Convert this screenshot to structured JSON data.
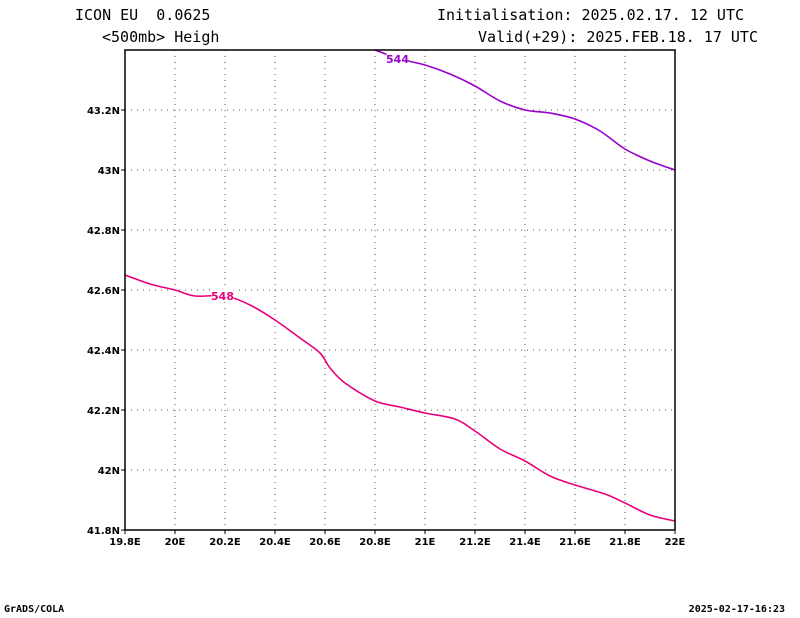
{
  "header": {
    "model_line": "ICON EU  0.0625",
    "field_line": "<500mb> Heigh",
    "init_line": "Initialisation: 2025.02.17. 12 UTC",
    "valid_line": "Valid(+29): 2025.FEB.18. 17 UTC"
  },
  "footer": {
    "left": "GrADS/COLA",
    "right": "2025-02-17-16:23"
  },
  "chart_data": {
    "type": "line",
    "grid": true,
    "xlim": [
      19.8,
      22.0
    ],
    "ylim": [
      41.8,
      43.4
    ],
    "x_ticks": [
      {
        "v": 19.8,
        "label": "19.8E"
      },
      {
        "v": 20.0,
        "label": "20E"
      },
      {
        "v": 20.2,
        "label": "20.2E"
      },
      {
        "v": 20.4,
        "label": "20.4E"
      },
      {
        "v": 20.6,
        "label": "20.6E"
      },
      {
        "v": 20.8,
        "label": "20.8E"
      },
      {
        "v": 21.0,
        "label": "21E"
      },
      {
        "v": 21.2,
        "label": "21.2E"
      },
      {
        "v": 21.4,
        "label": "21.4E"
      },
      {
        "v": 21.6,
        "label": "21.6E"
      },
      {
        "v": 21.8,
        "label": "21.8E"
      },
      {
        "v": 22.0,
        "label": "22E"
      }
    ],
    "y_ticks": [
      {
        "v": 41.8,
        "label": "41.8N"
      },
      {
        "v": 42.0,
        "label": "42N"
      },
      {
        "v": 42.2,
        "label": "42.2N"
      },
      {
        "v": 42.4,
        "label": "42.4N"
      },
      {
        "v": 42.6,
        "label": "42.6N"
      },
      {
        "v": 42.8,
        "label": "42.8N"
      },
      {
        "v": 43.0,
        "label": "43N"
      },
      {
        "v": 43.2,
        "label": "43.2N"
      }
    ],
    "contours": [
      {
        "label": "544",
        "color": "#9a00cc",
        "label_at": [
          20.89,
          43.37
        ],
        "points": [
          [
            20.8,
            43.4
          ],
          [
            20.9,
            43.37
          ],
          [
            21.0,
            43.35
          ],
          [
            21.1,
            43.32
          ],
          [
            21.2,
            43.28
          ],
          [
            21.3,
            43.23
          ],
          [
            21.4,
            43.2
          ],
          [
            21.5,
            43.19
          ],
          [
            21.6,
            43.17
          ],
          [
            21.7,
            43.13
          ],
          [
            21.8,
            43.07
          ],
          [
            21.9,
            43.03
          ],
          [
            22.0,
            43.0
          ]
        ]
      },
      {
        "label": "548",
        "color": "#e8007a",
        "label_at": [
          20.19,
          42.58
        ],
        "points": [
          [
            19.8,
            42.65
          ],
          [
            19.9,
            42.62
          ],
          [
            20.0,
            42.6
          ],
          [
            20.08,
            42.58
          ],
          [
            20.2,
            42.58
          ],
          [
            20.3,
            42.55
          ],
          [
            20.4,
            42.5
          ],
          [
            20.5,
            42.44
          ],
          [
            20.58,
            42.39
          ],
          [
            20.62,
            42.34
          ],
          [
            20.68,
            42.29
          ],
          [
            20.8,
            42.23
          ],
          [
            20.9,
            42.21
          ],
          [
            21.0,
            42.19
          ],
          [
            21.12,
            42.17
          ],
          [
            21.2,
            42.13
          ],
          [
            21.3,
            42.07
          ],
          [
            21.4,
            42.03
          ],
          [
            21.5,
            41.98
          ],
          [
            21.6,
            41.95
          ],
          [
            21.72,
            41.92
          ],
          [
            21.8,
            41.89
          ],
          [
            21.9,
            41.85
          ],
          [
            22.0,
            41.83
          ]
        ]
      }
    ]
  }
}
